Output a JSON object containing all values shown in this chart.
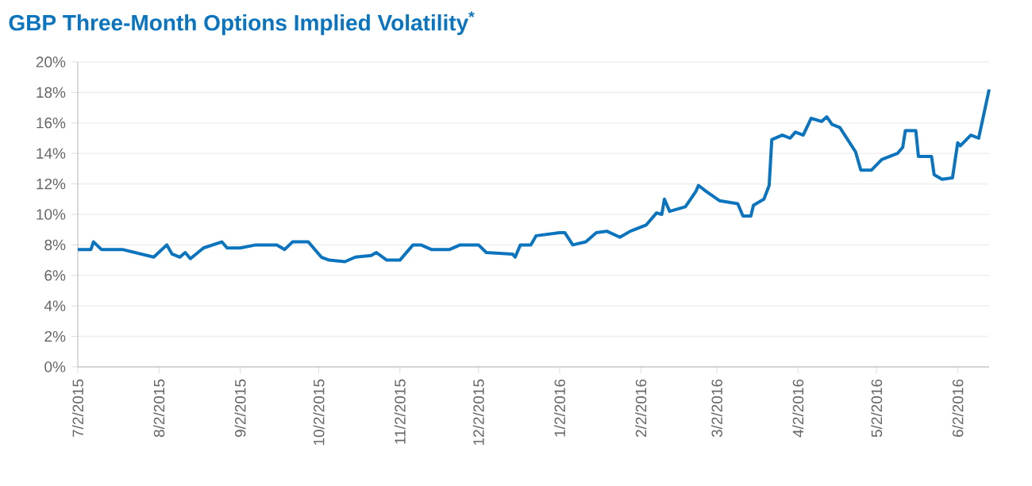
{
  "chart_data": {
    "type": "line",
    "title": "GBP Three-Month Options Implied Volatility$^{*}$",
    "x": [
      "2015-07-02",
      "2015-07-07",
      "2015-07-08",
      "2015-07-11",
      "2015-07-19",
      "2015-07-31",
      "2015-08-05",
      "2015-08-07",
      "2015-08-10",
      "2015-08-12",
      "2015-08-14",
      "2015-08-19",
      "2015-08-26",
      "2015-08-28",
      "2015-09-02",
      "2015-09-08",
      "2015-09-16",
      "2015-09-19",
      "2015-09-22",
      "2015-09-28",
      "2015-10-03",
      "2015-10-06",
      "2015-10-12",
      "2015-10-16",
      "2015-10-22",
      "2015-10-24",
      "2015-10-28",
      "2015-11-02",
      "2015-11-07",
      "2015-11-10",
      "2015-11-14",
      "2015-11-21",
      "2015-11-25",
      "2015-12-02",
      "2015-12-05",
      "2015-12-15",
      "2015-12-16",
      "2015-12-18",
      "2015-12-22",
      "2015-12-24",
      "2016-01-02",
      "2016-01-04",
      "2016-01-07",
      "2016-01-12",
      "2016-01-16",
      "2016-01-20",
      "2016-01-25",
      "2016-01-29",
      "2016-02-04",
      "2016-02-08",
      "2016-02-10",
      "2016-02-11",
      "2016-02-13",
      "2016-02-19",
      "2016-02-23",
      "2016-02-24",
      "2016-02-27",
      "2016-03-03",
      "2016-03-10",
      "2016-03-12",
      "2016-03-15",
      "2016-03-16",
      "2016-03-20",
      "2016-03-22",
      "2016-03-23",
      "2016-03-27",
      "2016-03-30",
      "2016-04-01",
      "2016-04-04",
      "2016-04-07",
      "2016-04-11",
      "2016-04-13",
      "2016-04-15",
      "2016-04-18",
      "2016-04-21",
      "2016-04-24",
      "2016-04-26",
      "2016-04-30",
      "2016-05-04",
      "2016-05-10",
      "2016-05-12",
      "2016-05-13",
      "2016-05-17",
      "2016-05-18",
      "2016-05-23",
      "2016-05-24",
      "2016-05-27",
      "2016-05-31",
      "2016-06-02",
      "2016-06-03",
      "2016-06-07",
      "2016-06-10",
      "2016-06-14"
    ],
    "series": [
      {
        "color": "#0a74bf",
        "values": [
          7.7,
          7.7,
          8.2,
          7.7,
          7.7,
          7.2,
          8.0,
          7.4,
          7.2,
          7.5,
          7.1,
          7.8,
          8.2,
          7.8,
          7.8,
          8.0,
          8.0,
          7.7,
          8.2,
          8.2,
          7.2,
          7.0,
          6.9,
          7.2,
          7.3,
          7.5,
          7.0,
          7.0,
          8.0,
          8.0,
          7.7,
          7.7,
          8.0,
          8.0,
          7.5,
          7.4,
          7.2,
          8.0,
          8.0,
          8.6,
          8.8,
          8.8,
          8.0,
          8.2,
          8.8,
          8.9,
          8.5,
          8.9,
          9.3,
          10.1,
          10.0,
          11.0,
          10.2,
          10.5,
          11.5,
          11.9,
          11.5,
          10.9,
          10.7,
          9.9,
          9.9,
          10.6,
          11.0,
          11.9,
          14.9,
          15.2,
          15.0,
          15.4,
          15.2,
          16.3,
          16.1,
          16.4,
          15.9,
          15.7,
          14.9,
          14.1,
          12.9,
          12.9,
          13.6,
          14.0,
          14.4,
          15.5,
          15.5,
          13.8,
          13.8,
          12.6,
          12.3,
          12.4,
          14.7,
          14.5,
          15.2,
          15.0,
          18.2
        ]
      }
    ],
    "xlim": [
      "2015-07-02",
      "2016-06-14"
    ],
    "xticks": [
      {
        "value": "2015-07-02",
        "label": "7/2/2015"
      },
      {
        "value": "2015-08-02",
        "label": "8/2/2015"
      },
      {
        "value": "2015-09-02",
        "label": "9/2/2015"
      },
      {
        "value": "2015-10-02",
        "label": "10/2/2015"
      },
      {
        "value": "2015-11-02",
        "label": "11/2/2015"
      },
      {
        "value": "2015-12-02",
        "label": "12/2/2015"
      },
      {
        "value": "2016-01-02",
        "label": "1/2/2016"
      },
      {
        "value": "2016-02-02",
        "label": "2/2/2016"
      },
      {
        "value": "2016-03-02",
        "label": "3/2/2016"
      },
      {
        "value": "2016-04-02",
        "label": "4/2/2016"
      },
      {
        "value": "2016-05-02",
        "label": "5/2/2016"
      },
      {
        "value": "2016-06-02",
        "label": "6/2/2016"
      }
    ],
    "ylim": [
      0,
      20
    ],
    "yticks": [
      {
        "value": 0,
        "label": "0%"
      },
      {
        "value": 2,
        "label": "2%"
      },
      {
        "value": 4,
        "label": "4%"
      },
      {
        "value": 6,
        "label": "6%"
      },
      {
        "value": 8,
        "label": "8%"
      },
      {
        "value": 10,
        "label": "10%"
      },
      {
        "value": 12,
        "label": "12%"
      },
      {
        "value": 14,
        "label": "14%"
      },
      {
        "value": 16,
        "label": "16%"
      },
      {
        "value": 18,
        "label": "18%"
      },
      {
        "value": 20,
        "label": "20%"
      }
    ],
    "grid": "y",
    "marker": "none",
    "line_style": "solid"
  }
}
